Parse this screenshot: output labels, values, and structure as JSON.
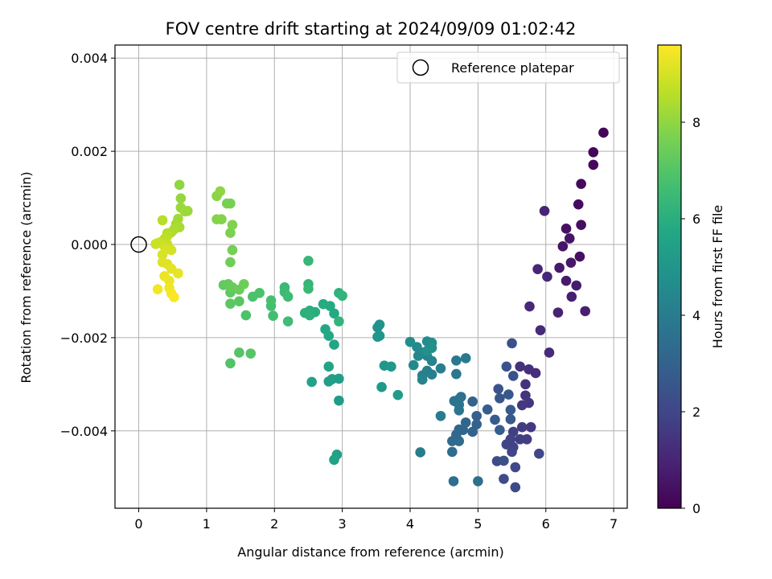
{
  "chart_data": {
    "type": "scatter",
    "title": "FOV centre drift starting at 2024/09/09 01:02:42",
    "xlabel": "Angular distance from reference (arcmin)",
    "ylabel": "Rotation from reference (arcmin)",
    "xlim": [
      -0.35,
      7.2
    ],
    "ylim": [
      -0.00566,
      0.00428
    ],
    "xticks": [
      0,
      1,
      2,
      3,
      4,
      5,
      6,
      7
    ],
    "xtick_labels": [
      "0",
      "1",
      "2",
      "3",
      "4",
      "5",
      "6",
      "7"
    ],
    "yticks": [
      -0.004,
      -0.002,
      0.0,
      0.002,
      0.004
    ],
    "ytick_labels": [
      "−0.004",
      "−0.002",
      "0.000",
      "0.002",
      "0.004"
    ],
    "grid": true,
    "legend": {
      "position": "top-right",
      "entries": [
        "Reference platepar"
      ]
    },
    "reference_point": {
      "x": 0,
      "y": 0
    },
    "colorbar": {
      "label": "Hours from first FF file",
      "range": [
        0,
        9.6
      ],
      "ticks": [
        0,
        2,
        4,
        6,
        8
      ],
      "tick_labels": [
        "0",
        "2",
        "4",
        "6",
        "8"
      ],
      "colormap": "viridis"
    },
    "series": [
      {
        "columns": [
          "x",
          "y",
          "hours"
        ],
        "points": [
          [
            6.85,
            0.0024,
            0.1
          ],
          [
            6.7,
            0.00198,
            0.15
          ],
          [
            6.7,
            0.00171,
            0.2
          ],
          [
            6.52,
            0.0013,
            0.25
          ],
          [
            6.48,
            0.00086,
            0.3
          ],
          [
            6.52,
            0.00042,
            0.35
          ],
          [
            6.5,
            -0.00026,
            0.4
          ],
          [
            6.3,
            0.00034,
            0.45
          ],
          [
            6.35,
            0.00013,
            0.5
          ],
          [
            6.25,
            -4e-05,
            0.55
          ],
          [
            6.37,
            -0.00039,
            0.6
          ],
          [
            6.2,
            -0.0005,
            0.65
          ],
          [
            6.3,
            -0.00078,
            0.7
          ],
          [
            6.45,
            -0.00088,
            0.75
          ],
          [
            6.38,
            -0.00112,
            0.8
          ],
          [
            6.58,
            -0.00143,
            0.85
          ],
          [
            6.18,
            -0.00146,
            0.9
          ],
          [
            5.98,
            0.00072,
            0.95
          ],
          [
            5.88,
            -0.00053,
            1.0
          ],
          [
            6.02,
            -0.00069,
            1.05
          ],
          [
            5.76,
            -0.00133,
            1.1
          ],
          [
            5.92,
            -0.00184,
            1.15
          ],
          [
            6.05,
            -0.00232,
            1.2
          ],
          [
            5.85,
            -0.00276,
            1.25
          ],
          [
            5.75,
            -0.00268,
            1.3
          ],
          [
            5.62,
            -0.00262,
            1.35
          ],
          [
            5.7,
            -0.003,
            1.4
          ],
          [
            5.7,
            -0.00324,
            1.45
          ],
          [
            5.75,
            -0.0034,
            1.5
          ],
          [
            5.65,
            -0.00345,
            1.55
          ],
          [
            5.78,
            -0.00392,
            1.6
          ],
          [
            5.65,
            -0.00392,
            1.65
          ],
          [
            5.72,
            -0.00418,
            1.7
          ],
          [
            5.62,
            -0.00418,
            1.75
          ],
          [
            5.52,
            -0.00402,
            1.8
          ],
          [
            5.48,
            -0.00418,
            1.85
          ],
          [
            5.52,
            -0.00435,
            1.9
          ],
          [
            5.42,
            -0.00429,
            1.95
          ],
          [
            5.5,
            -0.00445,
            2.0
          ],
          [
            5.9,
            -0.00449,
            2.05
          ],
          [
            5.55,
            -0.00478,
            2.1
          ],
          [
            5.55,
            -0.00521,
            2.15
          ],
          [
            5.38,
            -0.00503,
            2.2
          ],
          [
            5.28,
            -0.00465,
            2.25
          ],
          [
            5.38,
            -0.00464,
            2.3
          ],
          [
            5.5,
            -0.00212,
            2.35
          ],
          [
            5.42,
            -0.00262,
            2.4
          ],
          [
            5.52,
            -0.00282,
            2.45
          ],
          [
            5.3,
            -0.0031,
            2.5
          ],
          [
            5.32,
            -0.0033,
            2.55
          ],
          [
            5.45,
            -0.00322,
            2.6
          ],
          [
            5.48,
            -0.00355,
            2.65
          ],
          [
            5.48,
            -0.00375,
            2.7
          ],
          [
            5.25,
            -0.00376,
            2.75
          ],
          [
            5.32,
            -0.00398,
            2.8
          ],
          [
            5.14,
            -0.00354,
            2.85
          ],
          [
            4.98,
            -0.00368,
            2.9
          ],
          [
            4.92,
            -0.00337,
            2.95
          ],
          [
            4.98,
            -0.00386,
            3.0
          ],
          [
            4.92,
            -0.00402,
            3.05
          ],
          [
            4.82,
            -0.00382,
            3.1
          ],
          [
            4.78,
            -0.00398,
            3.15
          ],
          [
            4.72,
            -0.00397,
            3.2
          ],
          [
            4.68,
            -0.00408,
            3.25
          ],
          [
            4.72,
            -0.00422,
            3.3
          ],
          [
            4.62,
            -0.00422,
            3.35
          ],
          [
            4.62,
            -0.00445,
            3.4
          ],
          [
            4.64,
            -0.00508,
            3.45
          ],
          [
            5.0,
            -0.00508,
            3.5
          ],
          [
            4.75,
            -0.00327,
            3.55
          ],
          [
            4.72,
            -0.00332,
            3.6
          ],
          [
            4.65,
            -0.00336,
            3.65
          ],
          [
            4.72,
            -0.00344,
            3.7
          ],
          [
            4.72,
            -0.00356,
            3.75
          ],
          [
            4.68,
            -0.00278,
            3.8
          ],
          [
            4.68,
            -0.00249,
            3.85
          ],
          [
            4.82,
            -0.00244,
            3.9
          ],
          [
            4.45,
            -0.00368,
            3.95
          ],
          [
            4.15,
            -0.00446,
            4.0
          ],
          [
            4.45,
            -0.00266,
            4.05
          ],
          [
            4.32,
            -0.00279,
            4.1
          ],
          [
            4.25,
            -0.00271,
            4.15
          ],
          [
            4.18,
            -0.00281,
            4.2
          ],
          [
            4.18,
            -0.0029,
            4.25
          ],
          [
            4.32,
            -0.0025,
            4.3
          ],
          [
            4.25,
            -0.00239,
            4.35
          ],
          [
            4.18,
            -0.00232,
            4.4
          ],
          [
            4.12,
            -0.00239,
            4.45
          ],
          [
            4.05,
            -0.00259,
            4.5
          ],
          [
            4.1,
            -0.0022,
            4.55
          ],
          [
            4.0,
            -0.00209,
            4.6
          ],
          [
            4.25,
            -0.00208,
            4.65
          ],
          [
            4.32,
            -0.00211,
            4.7
          ],
          [
            4.32,
            -0.00222,
            4.75
          ],
          [
            4.25,
            -0.00228,
            4.8
          ],
          [
            3.55,
            -0.00172,
            4.85
          ],
          [
            3.52,
            -0.00178,
            4.9
          ],
          [
            3.55,
            -0.00196,
            4.95
          ],
          [
            3.52,
            -0.00198,
            5.0
          ],
          [
            3.62,
            -0.0026,
            5.05
          ],
          [
            3.72,
            -0.00262,
            5.1
          ],
          [
            3.58,
            -0.00306,
            5.15
          ],
          [
            3.82,
            -0.00323,
            5.2
          ],
          [
            2.95,
            -0.00335,
            5.25
          ],
          [
            2.95,
            -0.00288,
            5.3
          ],
          [
            2.85,
            -0.00289,
            5.35
          ],
          [
            2.8,
            -0.00294,
            5.4
          ],
          [
            2.92,
            -0.00451,
            5.45
          ],
          [
            2.88,
            -0.00462,
            5.5
          ],
          [
            2.55,
            -0.00295,
            5.55
          ],
          [
            2.8,
            -0.00262,
            5.6
          ],
          [
            2.88,
            -0.00215,
            5.65
          ],
          [
            2.8,
            -0.00196,
            5.7
          ],
          [
            2.75,
            -0.00182,
            5.75
          ],
          [
            2.88,
            -0.00148,
            5.8
          ],
          [
            2.82,
            -0.00132,
            5.85
          ],
          [
            2.72,
            -0.00128,
            5.9
          ],
          [
            2.6,
            -0.00145,
            5.95
          ],
          [
            2.52,
            -0.00142,
            6.0
          ],
          [
            2.52,
            -0.00152,
            6.05
          ],
          [
            2.45,
            -0.00147,
            6.1
          ],
          [
            2.95,
            -0.00104,
            6.15
          ],
          [
            3.0,
            -0.0011,
            6.2
          ],
          [
            2.95,
            -0.00165,
            6.25
          ],
          [
            2.5,
            -0.00085,
            6.3
          ],
          [
            2.5,
            -0.00035,
            6.35
          ],
          [
            2.5,
            -0.00095,
            6.4
          ],
          [
            2.15,
            -0.00092,
            6.45
          ],
          [
            2.15,
            -0.00102,
            6.5
          ],
          [
            2.2,
            -0.00112,
            6.55
          ],
          [
            2.2,
            -0.00165,
            6.6
          ],
          [
            1.98,
            -0.00153,
            6.65
          ],
          [
            1.95,
            -0.00132,
            6.7
          ],
          [
            1.95,
            -0.0012,
            6.75
          ],
          [
            1.78,
            -0.00104,
            6.8
          ],
          [
            1.68,
            -0.00112,
            6.85
          ],
          [
            1.58,
            -0.00152,
            6.9
          ],
          [
            1.35,
            -0.00255,
            6.95
          ],
          [
            1.48,
            -0.00232,
            7.0
          ],
          [
            1.65,
            -0.00234,
            7.05
          ],
          [
            1.48,
            -0.00122,
            7.1
          ],
          [
            1.35,
            -0.00127,
            7.15
          ],
          [
            1.35,
            -0.00103,
            7.2
          ],
          [
            1.25,
            -0.00087,
            7.25
          ],
          [
            1.32,
            -0.00085,
            7.3
          ],
          [
            1.38,
            -0.00092,
            7.35
          ],
          [
            1.48,
            -0.00097,
            7.4
          ],
          [
            1.55,
            -0.00085,
            7.45
          ],
          [
            1.35,
            -0.00038,
            7.5
          ],
          [
            1.38,
            -0.00012,
            7.55
          ],
          [
            1.3,
            0.00088,
            7.6
          ],
          [
            1.35,
            0.00088,
            7.65
          ],
          [
            1.35,
            0.00025,
            7.7
          ],
          [
            1.38,
            0.00042,
            7.75
          ],
          [
            1.22,
            0.00054,
            7.8
          ],
          [
            1.15,
            0.00054,
            7.85
          ],
          [
            1.15,
            0.00104,
            7.9
          ],
          [
            1.2,
            0.00114,
            7.95
          ],
          [
            0.6,
            0.00128,
            8.0
          ],
          [
            0.62,
            0.00099,
            8.05
          ],
          [
            0.72,
            0.00072,
            8.1
          ],
          [
            0.62,
            0.00079,
            8.15
          ],
          [
            0.68,
            0.00071,
            8.2
          ],
          [
            0.58,
            0.00055,
            8.25
          ],
          [
            0.55,
            0.00044,
            8.3
          ],
          [
            0.6,
            0.00037,
            8.35
          ],
          [
            0.52,
            0.00032,
            8.4
          ],
          [
            0.48,
            0.00026,
            8.45
          ],
          [
            0.42,
            0.00024,
            8.5
          ],
          [
            0.35,
            0.00052,
            8.55
          ],
          [
            0.42,
            0.00018,
            8.6
          ],
          [
            0.38,
            0.00012,
            8.65
          ],
          [
            0.32,
            5e-05,
            8.7
          ],
          [
            0.42,
            1e-05,
            8.75
          ],
          [
            0.25,
            1e-05,
            8.8
          ],
          [
            0.28,
            3e-05,
            8.85
          ],
          [
            0.38,
            -4e-05,
            8.9
          ],
          [
            0.48,
            -0.00012,
            8.95
          ],
          [
            0.4,
            -0.0001,
            9.0
          ],
          [
            0.35,
            -0.00022,
            9.05
          ],
          [
            0.35,
            -0.00038,
            9.1
          ],
          [
            0.42,
            -0.00042,
            9.15
          ],
          [
            0.48,
            -0.00052,
            9.2
          ],
          [
            0.58,
            -0.00062,
            9.25
          ],
          [
            0.38,
            -0.00068,
            9.3
          ],
          [
            0.45,
            -0.00078,
            9.35
          ],
          [
            0.45,
            -0.00093,
            9.4
          ],
          [
            0.28,
            -0.00096,
            9.45
          ],
          [
            0.48,
            -0.00105,
            9.5
          ],
          [
            0.52,
            -0.00113,
            9.55
          ]
        ]
      }
    ]
  }
}
